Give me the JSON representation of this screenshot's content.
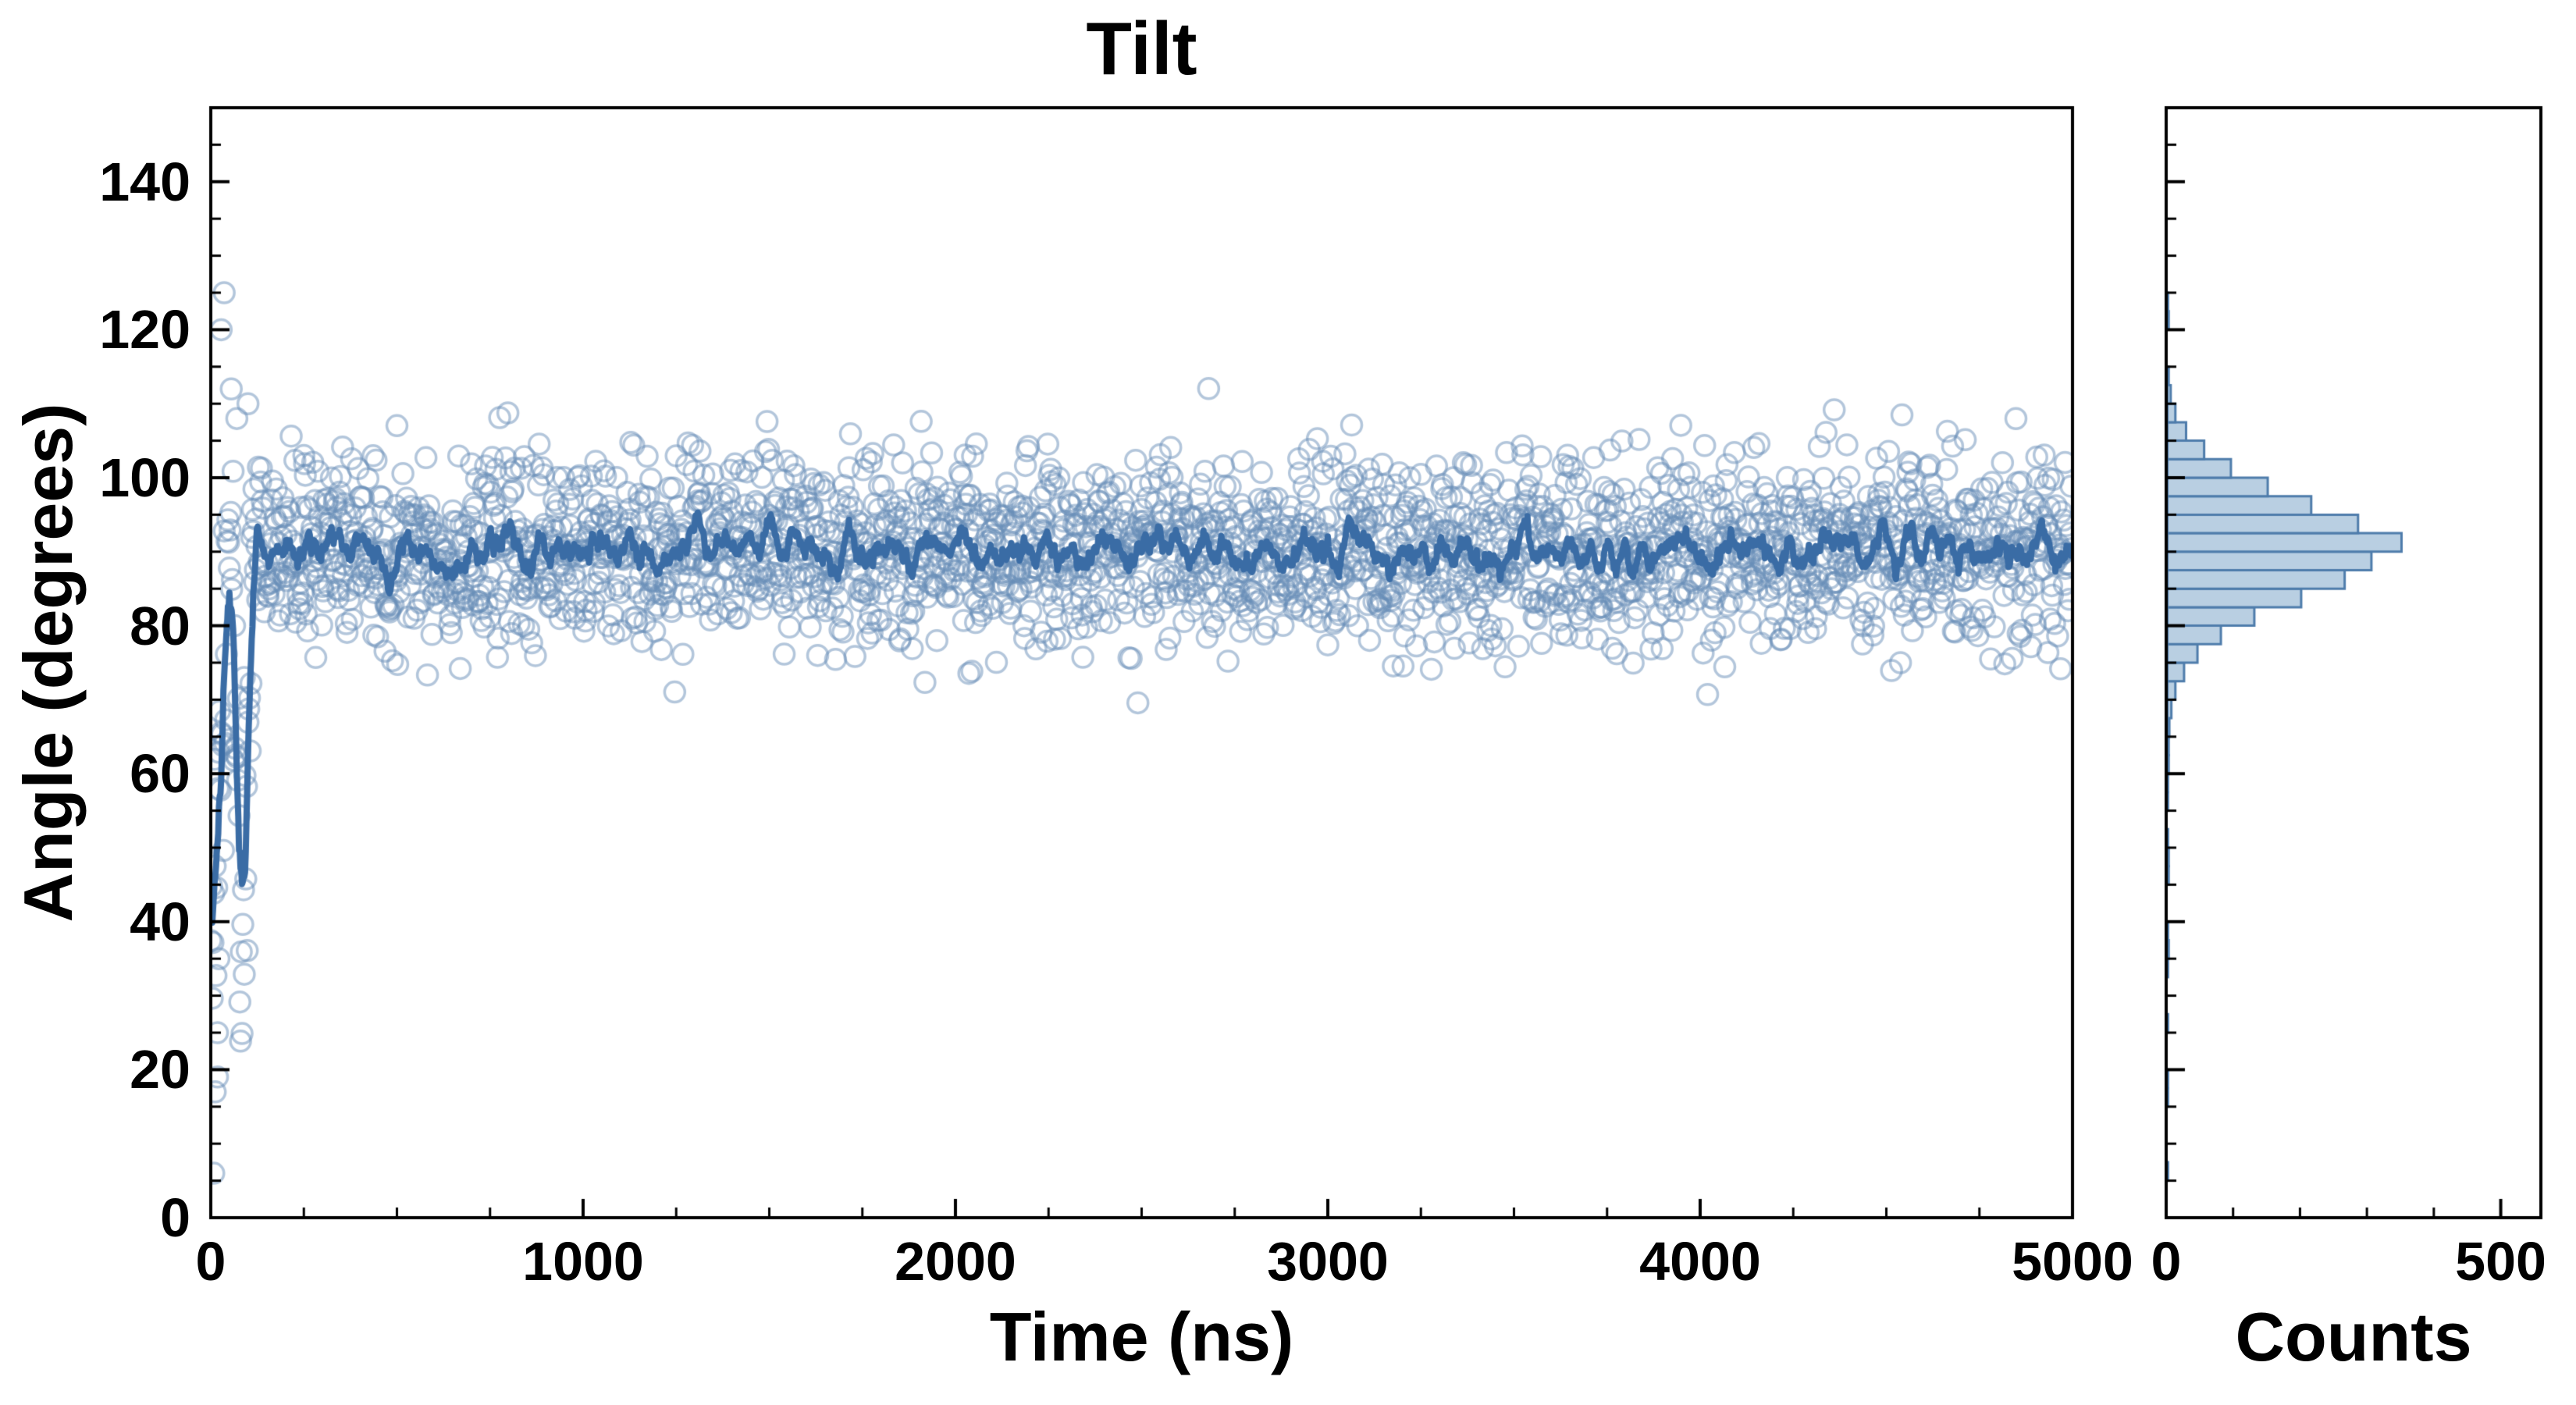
{
  "chart_data": {
    "type": "scatter",
    "title": "Tilt",
    "main": {
      "xlabel": "Time (ns)",
      "ylabel": "Angle (degrees)",
      "xlim": [
        0,
        5000
      ],
      "ylim": [
        0,
        150
      ],
      "xticks": [
        0,
        1000,
        2000,
        3000,
        4000,
        5000
      ],
      "yticks": [
        0,
        20,
        40,
        60,
        80,
        100,
        120,
        140
      ],
      "x_minor_step": 250,
      "y_minor_step": 5,
      "scatter": {
        "n_points": 2500,
        "dt": 2,
        "mean": 90,
        "std": 6.5,
        "seed": 42,
        "color": "rgba(104,142,184,0.5)",
        "radius": 13,
        "stroke_width": 3.5
      },
      "equilibration": {
        "t_end": 120,
        "path": [
          [
            0,
            47
          ],
          [
            30,
            55
          ],
          [
            50,
            100
          ],
          [
            65,
            70
          ],
          [
            80,
            36
          ],
          [
            95,
            50
          ],
          [
            110,
            88
          ],
          [
            120,
            90
          ]
        ],
        "noise_std": 10,
        "outliers": [
          [
            8,
            6
          ],
          [
            12,
            17
          ],
          [
            18,
            25
          ],
          [
            22,
            35
          ],
          [
            28,
            120
          ],
          [
            36,
            125
          ],
          [
            55,
            112
          ],
          [
            70,
            108
          ],
          [
            90,
            73
          ],
          [
            100,
            110
          ]
        ]
      },
      "line": {
        "window": 15,
        "color": "#3a6ca5",
        "width": 8
      }
    },
    "hist": {
      "xlabel": "Counts",
      "xlim": [
        0,
        560
      ],
      "xticks": [
        0,
        500
      ],
      "x_minor_step": 100,
      "bin_width": 2.5,
      "bar_fill": "#b9cfe2",
      "bar_edge": "#4e7cab",
      "bins": [
        [
          5,
          1
        ],
        [
          15,
          1
        ],
        [
          17.5,
          1
        ],
        [
          25,
          1
        ],
        [
          32.5,
          1
        ],
        [
          35,
          2
        ],
        [
          37.5,
          1
        ],
        [
          45,
          2
        ],
        [
          47.5,
          2
        ],
        [
          50,
          1
        ],
        [
          55,
          1
        ],
        [
          57.5,
          1
        ],
        [
          60,
          2
        ],
        [
          62.5,
          2
        ],
        [
          65,
          3
        ],
        [
          67.5,
          6
        ],
        [
          70,
          12
        ],
        [
          72.5,
          25
        ],
        [
          75,
          45
        ],
        [
          77.5,
          80
        ],
        [
          80,
          130
        ],
        [
          82.5,
          200
        ],
        [
          85,
          265
        ],
        [
          87.5,
          305
        ],
        [
          90,
          350
        ],
        [
          92.5,
          285
        ],
        [
          95,
          215
        ],
        [
          97.5,
          150
        ],
        [
          100,
          95
        ],
        [
          102.5,
          55
        ],
        [
          105,
          28
        ],
        [
          107.5,
          12
        ],
        [
          110,
          5
        ],
        [
          112.5,
          2
        ],
        [
          120,
          2
        ],
        [
          122.5,
          1
        ]
      ]
    },
    "axis_color": "#000000"
  }
}
